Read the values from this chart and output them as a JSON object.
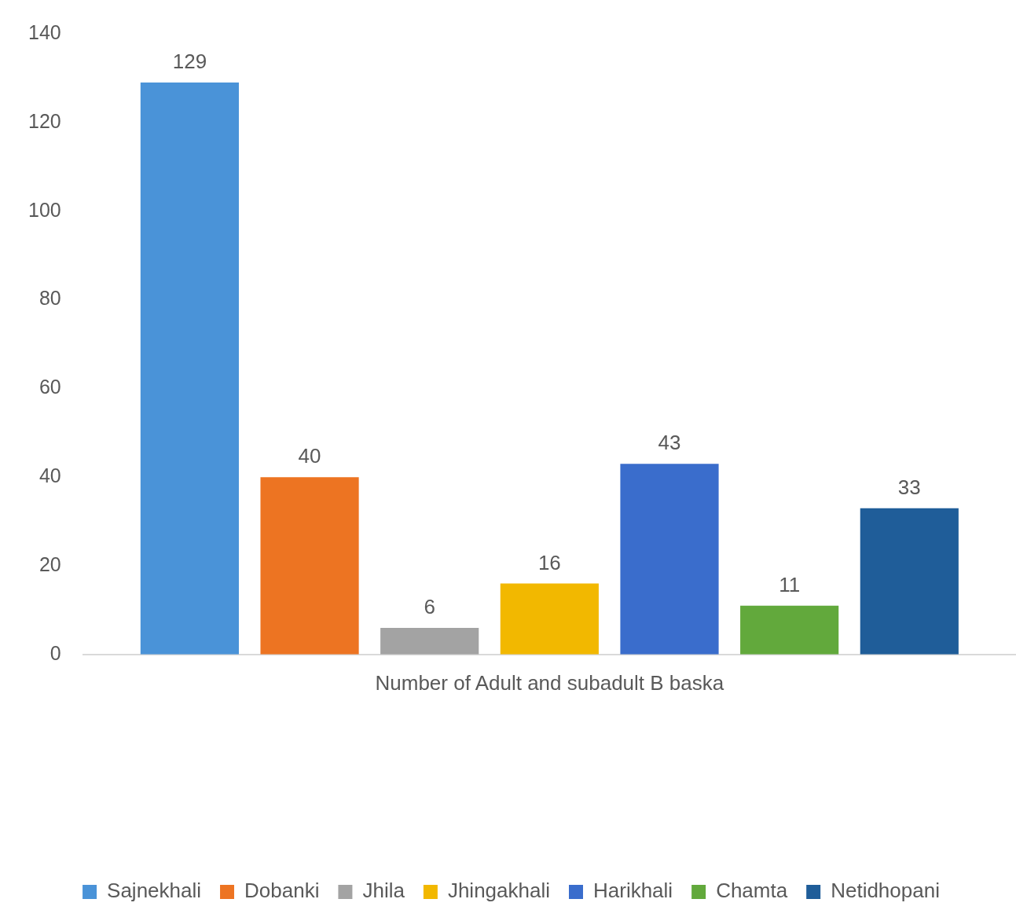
{
  "chart_data": {
    "type": "bar",
    "categories": [
      "Number of Adult and subadult B baska"
    ],
    "series": [
      {
        "name": "Sajnekhali",
        "color": "#4a93d8",
        "values": [
          129
        ]
      },
      {
        "name": "Dobanki",
        "color": "#ed7422",
        "values": [
          40
        ]
      },
      {
        "name": "Jhila",
        "color": "#a3a3a3",
        "values": [
          6
        ]
      },
      {
        "name": "Jhingakhali",
        "color": "#f2b800",
        "values": [
          16
        ]
      },
      {
        "name": "Harikhali",
        "color": "#3a6dcc",
        "values": [
          43
        ]
      },
      {
        "name": "Chamta",
        "color": "#62a93c",
        "values": [
          11
        ]
      },
      {
        "name": "Netidhopani",
        "color": "#1f5d99",
        "values": [
          33
        ]
      }
    ],
    "ylim": [
      0,
      140
    ],
    "yticks": [
      0,
      20,
      40,
      60,
      80,
      100,
      120,
      140
    ],
    "grid": false,
    "legend": "bottom",
    "data_labels": true
  }
}
